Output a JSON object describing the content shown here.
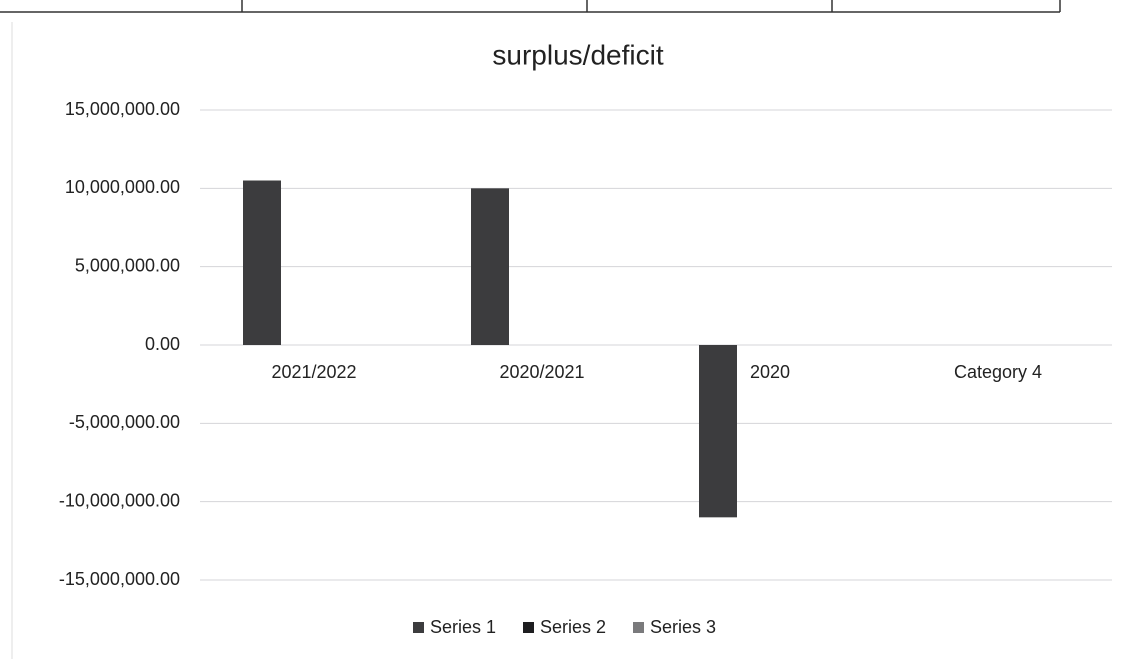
{
  "chart_data": {
    "type": "bar",
    "title": "surplus/deficit",
    "categories": [
      "2021/2022",
      "2020/2021",
      "2020",
      "Category 4"
    ],
    "series": [
      {
        "name": "Series 1",
        "color": "#3c3c3e",
        "values": [
          10500000,
          10000000,
          -11000000,
          null
        ]
      },
      {
        "name": "Series 2",
        "color": "#1e1e20",
        "values": [
          null,
          null,
          null,
          null
        ]
      },
      {
        "name": "Series 3",
        "color": "#7a7a7c",
        "values": [
          null,
          null,
          null,
          null
        ]
      }
    ],
    "ylim": [
      -15000000,
      15000000
    ],
    "yticks": [
      {
        "value": -15000000,
        "label": "-15,000,000.00"
      },
      {
        "value": -10000000,
        "label": "-10,000,000.00"
      },
      {
        "value": -5000000,
        "label": "-5,000,000.00"
      },
      {
        "value": 0,
        "label": "0.00"
      },
      {
        "value": 5000000,
        "label": "5,000,000.00"
      },
      {
        "value": 10000000,
        "label": "10,000,000.00"
      },
      {
        "value": 15000000,
        "label": "15,000,000.00"
      }
    ],
    "grid": true,
    "legend": "bottom"
  }
}
